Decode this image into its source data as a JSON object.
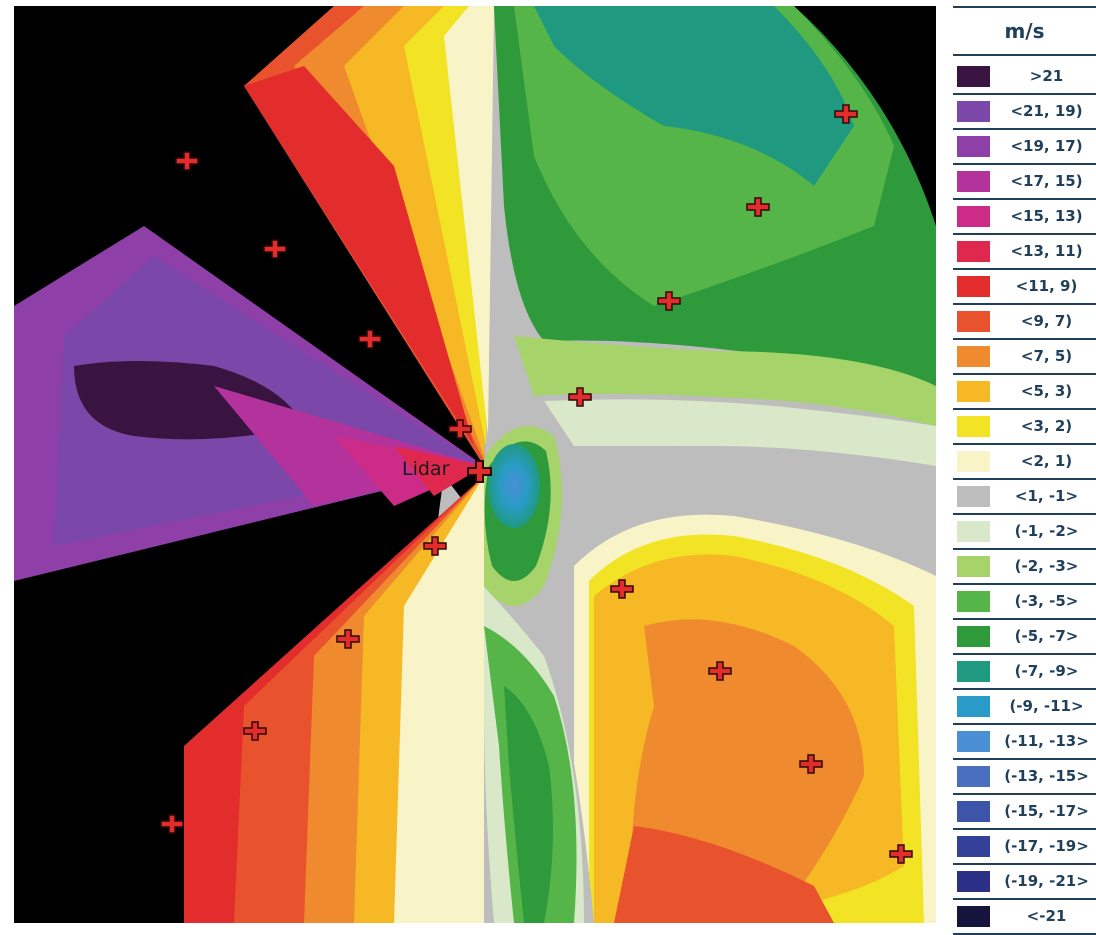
{
  "map": {
    "lidar_label": "Lidar",
    "background_color": "#000000"
  },
  "legend": {
    "title": "m/s",
    "items": [
      {
        "label": ">21",
        "color": "#3a1440"
      },
      {
        "label": "<21, 19)",
        "color": "#7b47a8"
      },
      {
        "label": "<19, 17)",
        "color": "#8f3fa8"
      },
      {
        "label": "<17, 15)",
        "color": "#b3329c"
      },
      {
        "label": "<15, 13)",
        "color": "#cc2b88"
      },
      {
        "label": "<13, 11)",
        "color": "#e0284f"
      },
      {
        "label": "<11, 9)",
        "color": "#e32c2c"
      },
      {
        "label": "<9, 7)",
        "color": "#e8532e"
      },
      {
        "label": "<7, 5)",
        "color": "#ef8a2e"
      },
      {
        "label": "<5, 3)",
        "color": "#f6b925"
      },
      {
        "label": "<3, 2)",
        "color": "#f2e424"
      },
      {
        "label": "<2, 1)",
        "color": "#f8f4c8"
      },
      {
        "label": "<1, -1>",
        "color": "#bdbdbd"
      },
      {
        "label": "(-1, -2>",
        "color": "#d8e8c8"
      },
      {
        "label": "(-2, -3>",
        "color": "#a7d36b"
      },
      {
        "label": "(-3, -5>",
        "color": "#55b548"
      },
      {
        "label": "(-5, -7>",
        "color": "#2f9a3b"
      },
      {
        "label": "(-7, -9>",
        "color": "#1f9a80"
      },
      {
        "label": "(-9, -11>",
        "color": "#2a9bc8"
      },
      {
        "label": "(-11, -13>",
        "color": "#4a8fd4"
      },
      {
        "label": "(-13, -15>",
        "color": "#4a6fbf"
      },
      {
        "label": "(-15, -17>",
        "color": "#3d55a8"
      },
      {
        "label": "(-17, -19>",
        "color": "#344198"
      },
      {
        "label": "(-19, -21>",
        "color": "#2b2f86"
      },
      {
        "label": "<-21",
        "color": "#14143c"
      }
    ]
  }
}
